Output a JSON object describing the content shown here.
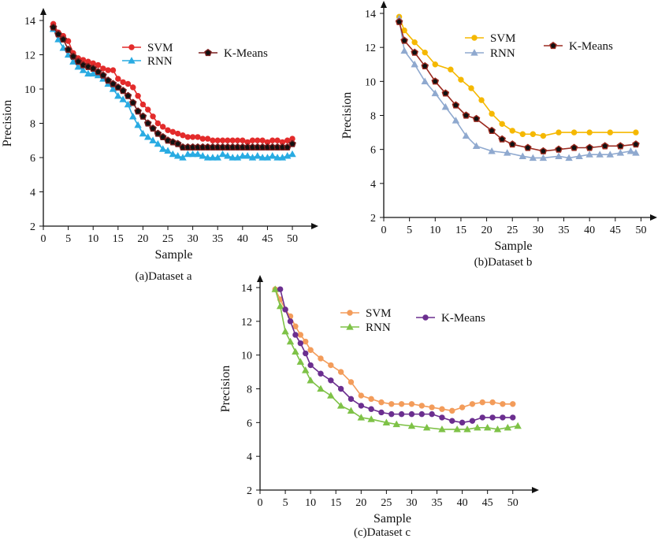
{
  "chart_data": [
    {
      "type": "line",
      "caption": "(a)Dataset a",
      "xlabel": "Sample",
      "ylabel": "Precision",
      "xlim": [
        0,
        53
      ],
      "ylim": [
        2,
        14
      ],
      "xticks": [
        0,
        5,
        10,
        15,
        20,
        25,
        30,
        35,
        40,
        45,
        50
      ],
      "yticks": [
        2,
        4,
        6,
        8,
        10,
        12,
        14
      ],
      "legend": [
        "SVM",
        "RNN",
        "K-Means"
      ],
      "series": [
        {
          "name": "SVM",
          "color": "#e32b2b",
          "marker": "circle",
          "x": [
            2,
            3,
            4,
            5,
            6,
            7,
            8,
            9,
            10,
            11,
            12,
            13,
            14,
            15,
            16,
            17,
            18,
            19,
            20,
            21,
            22,
            23,
            24,
            25,
            26,
            27,
            28,
            29,
            30,
            31,
            32,
            33,
            34,
            35,
            36,
            37,
            38,
            39,
            40,
            41,
            42,
            43,
            44,
            45,
            46,
            47,
            48,
            49,
            50
          ],
          "y": [
            13.8,
            13.3,
            13.1,
            12.8,
            12.1,
            11.8,
            11.7,
            11.6,
            11.5,
            11.4,
            11.2,
            11.1,
            11.1,
            10.6,
            10.4,
            10.3,
            10.1,
            9.6,
            9.1,
            8.8,
            8.4,
            8.0,
            7.8,
            7.6,
            7.5,
            7.4,
            7.3,
            7.2,
            7.2,
            7.2,
            7.1,
            7.1,
            7.0,
            7.0,
            7.0,
            7.0,
            7.0,
            7.0,
            7.0,
            6.9,
            7.0,
            7.0,
            7.0,
            6.9,
            7.0,
            7.0,
            6.9,
            7.0,
            7.1
          ]
        },
        {
          "name": "RNN",
          "color": "#29abe2",
          "marker": "triangle",
          "x": [
            2,
            3,
            4,
            5,
            6,
            7,
            8,
            9,
            10,
            11,
            12,
            13,
            14,
            15,
            16,
            17,
            18,
            19,
            20,
            21,
            22,
            23,
            24,
            25,
            26,
            27,
            28,
            29,
            30,
            31,
            32,
            33,
            34,
            35,
            36,
            37,
            38,
            39,
            40,
            41,
            42,
            43,
            44,
            45,
            46,
            47,
            48,
            49,
            50
          ],
          "y": [
            13.5,
            12.9,
            12.4,
            12.0,
            11.6,
            11.3,
            11.1,
            10.9,
            10.9,
            10.8,
            10.6,
            10.3,
            10.0,
            9.6,
            9.4,
            9.1,
            8.4,
            7.9,
            7.4,
            7.2,
            7.0,
            6.8,
            6.5,
            6.4,
            6.2,
            6.1,
            6.0,
            6.2,
            6.2,
            6.2,
            6.1,
            6.0,
            6.0,
            6.0,
            6.2,
            6.1,
            6.0,
            6.0,
            6.1,
            6.1,
            6.0,
            6.1,
            6.0,
            6.0,
            6.1,
            6.0,
            6.0,
            6.1,
            6.2
          ]
        },
        {
          "name": "K-Means",
          "color": "#7a1f1f",
          "marker": "pentagon",
          "x": [
            2,
            3,
            4,
            5,
            6,
            7,
            8,
            9,
            10,
            11,
            12,
            13,
            14,
            15,
            16,
            17,
            18,
            19,
            20,
            21,
            22,
            23,
            24,
            25,
            26,
            27,
            28,
            29,
            30,
            31,
            32,
            33,
            34,
            35,
            36,
            37,
            38,
            39,
            40,
            41,
            42,
            43,
            44,
            45,
            46,
            47,
            48,
            49,
            50
          ],
          "y": [
            13.6,
            13.2,
            12.9,
            12.3,
            11.9,
            11.6,
            11.4,
            11.3,
            11.2,
            11.0,
            10.8,
            10.5,
            10.3,
            10.1,
            9.9,
            9.6,
            9.2,
            8.7,
            8.4,
            8.0,
            7.7,
            7.4,
            7.2,
            7.0,
            6.9,
            6.8,
            6.6,
            6.6,
            6.6,
            6.6,
            6.6,
            6.6,
            6.6,
            6.6,
            6.6,
            6.6,
            6.6,
            6.6,
            6.6,
            6.6,
            6.6,
            6.6,
            6.6,
            6.6,
            6.6,
            6.6,
            6.6,
            6.6,
            6.8
          ]
        }
      ]
    },
    {
      "type": "line",
      "caption": "(b)Dataset b",
      "xlabel": "Sample",
      "ylabel": "Precision",
      "xlim": [
        0,
        51
      ],
      "ylim": [
        2,
        14
      ],
      "xticks": [
        0,
        5,
        10,
        15,
        20,
        25,
        30,
        35,
        40,
        45,
        50
      ],
      "yticks": [
        2,
        4,
        6,
        8,
        10,
        12,
        14
      ],
      "legend": [
        "SVM",
        "RNN",
        "K-Means"
      ],
      "series": [
        {
          "name": "SVM",
          "color": "#f5b800",
          "marker": "circle",
          "x": [
            3,
            4,
            6,
            8,
            10,
            13,
            15,
            17,
            19,
            21,
            23,
            25,
            27,
            29,
            31,
            34,
            37,
            40,
            44,
            49
          ],
          "y": [
            13.8,
            13.0,
            12.3,
            11.7,
            11.0,
            10.7,
            10.1,
            9.6,
            8.9,
            8.1,
            7.5,
            7.1,
            6.9,
            6.9,
            6.8,
            7.0,
            7.0,
            7.0,
            7.0,
            7.0
          ]
        },
        {
          "name": "RNN",
          "color": "#8fa9cf",
          "marker": "triangle",
          "x": [
            3,
            4,
            6,
            8,
            10,
            12,
            14,
            16,
            18,
            21,
            24,
            27,
            29,
            31,
            34,
            36,
            38,
            40,
            42,
            44,
            46,
            48,
            49
          ],
          "y": [
            13.7,
            11.8,
            11.0,
            10.0,
            9.3,
            8.5,
            7.7,
            6.8,
            6.2,
            5.9,
            5.8,
            5.6,
            5.5,
            5.5,
            5.6,
            5.5,
            5.6,
            5.7,
            5.7,
            5.7,
            5.8,
            5.9,
            5.8
          ]
        },
        {
          "name": "K-Means",
          "color": "#9c2b20",
          "marker": "pentagon",
          "x": [
            3,
            4,
            6,
            8,
            10,
            12,
            14,
            16,
            18,
            21,
            23,
            25,
            28,
            31,
            34,
            37,
            40,
            43,
            46,
            49
          ],
          "y": [
            13.5,
            12.4,
            11.7,
            10.9,
            10.0,
            9.3,
            8.6,
            8.0,
            7.8,
            7.1,
            6.6,
            6.3,
            6.1,
            5.9,
            6.0,
            6.1,
            6.1,
            6.2,
            6.2,
            6.3
          ]
        }
      ]
    },
    {
      "type": "line",
      "caption": "(c)Dataset c",
      "xlabel": "Sample",
      "ylabel": "Precision",
      "xlim": [
        0,
        53
      ],
      "ylim": [
        2,
        14
      ],
      "xticks": [
        0,
        5,
        10,
        15,
        20,
        25,
        30,
        35,
        40,
        45,
        50
      ],
      "yticks": [
        2,
        4,
        6,
        8,
        10,
        12,
        14
      ],
      "legend": [
        "SVM",
        "RNN",
        "K-Means"
      ],
      "series": [
        {
          "name": "SVM",
          "color": "#f39c5a",
          "marker": "circle",
          "x": [
            3,
            4,
            5,
            6,
            7,
            8,
            9,
            10,
            12,
            14,
            16,
            18,
            20,
            22,
            24,
            26,
            28,
            30,
            32,
            34,
            36,
            38,
            40,
            42,
            44,
            46,
            48,
            50
          ],
          "y": [
            13.9,
            13.3,
            12.7,
            12.3,
            11.7,
            11.2,
            10.8,
            10.3,
            9.8,
            9.4,
            9.0,
            8.4,
            7.6,
            7.4,
            7.2,
            7.1,
            7.1,
            7.1,
            7.0,
            6.9,
            6.8,
            6.7,
            6.9,
            7.1,
            7.2,
            7.2,
            7.1,
            7.1
          ]
        },
        {
          "name": "RNN",
          "color": "#7ec247",
          "marker": "triangle",
          "x": [
            3,
            4,
            5,
            6,
            7,
            8,
            9,
            10,
            12,
            14,
            16,
            18,
            20,
            22,
            25,
            27,
            30,
            33,
            36,
            39,
            41,
            43,
            45,
            47,
            49,
            51
          ],
          "y": [
            13.9,
            12.9,
            11.4,
            10.8,
            10.2,
            9.6,
            9.1,
            8.5,
            8.0,
            7.6,
            7.0,
            6.7,
            6.3,
            6.2,
            6.0,
            5.9,
            5.8,
            5.7,
            5.6,
            5.6,
            5.6,
            5.7,
            5.7,
            5.6,
            5.7,
            5.8
          ]
        },
        {
          "name": "K-Means",
          "color": "#6b2e8f",
          "marker": "circle",
          "x": [
            4,
            5,
            6,
            7,
            8,
            9,
            10,
            12,
            14,
            16,
            18,
            20,
            22,
            24,
            26,
            28,
            30,
            32,
            34,
            36,
            38,
            40,
            42,
            44,
            46,
            48,
            50
          ],
          "y": [
            13.9,
            12.7,
            12.0,
            11.2,
            10.7,
            10.1,
            9.4,
            8.9,
            8.5,
            8.0,
            7.4,
            7.0,
            6.8,
            6.6,
            6.5,
            6.5,
            6.5,
            6.5,
            6.5,
            6.3,
            6.1,
            6.0,
            6.1,
            6.3,
            6.3,
            6.3,
            6.3
          ]
        }
      ]
    }
  ]
}
